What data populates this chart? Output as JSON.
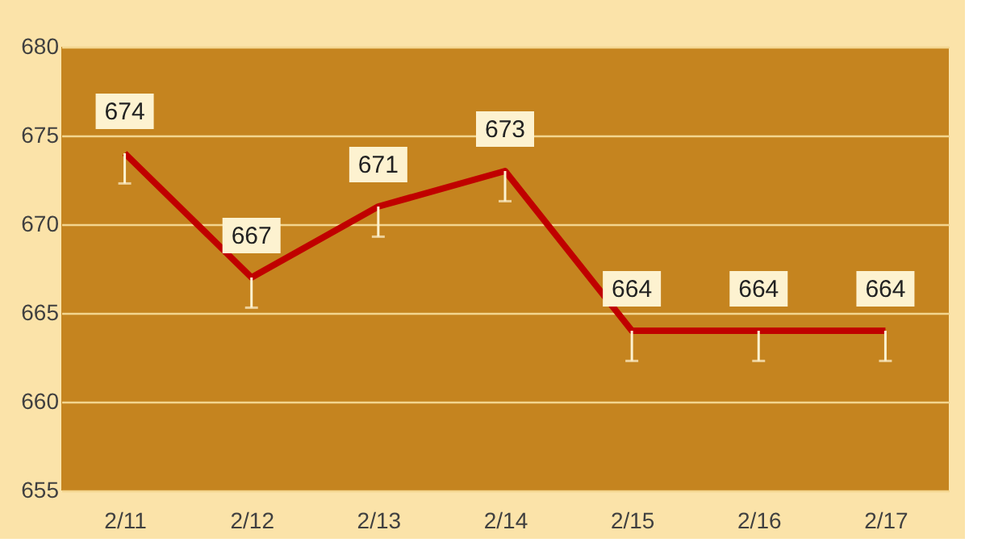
{
  "chart_data": {
    "type": "line",
    "categories": [
      "2/11",
      "2/12",
      "2/13",
      "2/14",
      "2/15",
      "2/16",
      "2/17"
    ],
    "series": [
      {
        "color": "#c00000",
        "values": [
          674,
          667,
          671,
          673,
          664,
          664,
          664
        ],
        "errors": [
          [
            672.3,
            674
          ],
          [
            665.3,
            667
          ],
          [
            669.3,
            671
          ],
          [
            671.3,
            673
          ],
          [
            662.3,
            664
          ],
          [
            662.3,
            664
          ],
          [
            662.3,
            664
          ]
        ]
      }
    ],
    "ylim": [
      655,
      680
    ],
    "yticks": [
      655,
      660,
      665,
      670,
      675,
      680
    ],
    "grid": "y",
    "data_labels": true,
    "marker": "none",
    "line_style": "solid"
  }
}
